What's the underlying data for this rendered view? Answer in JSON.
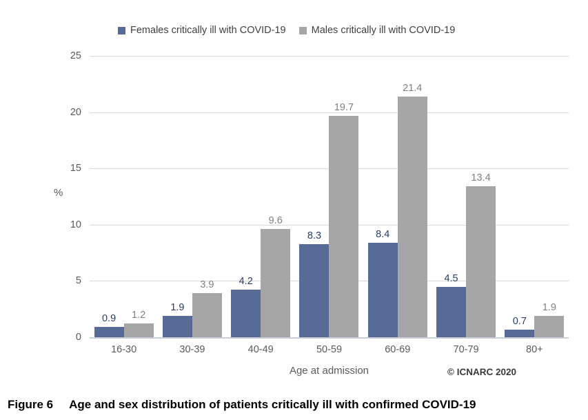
{
  "chart_data": {
    "type": "bar",
    "categories": [
      "16-30",
      "30-39",
      "40-49",
      "50-59",
      "60-69",
      "70-79",
      "80+"
    ],
    "series": [
      {
        "name": "Females critically ill with COVID-19",
        "color": "#586a96",
        "label_color": "#283d66",
        "values": [
          0.9,
          1.9,
          4.2,
          8.3,
          8.4,
          4.5,
          0.7
        ]
      },
      {
        "name": "Males critically ill with COVID-19",
        "color": "#a6a6a6",
        "label_color": "#7f7f7f",
        "values": [
          1.2,
          3.9,
          9.6,
          19.7,
          21.4,
          13.4,
          1.9
        ]
      }
    ],
    "title": "",
    "xlabel": "Age at admission",
    "ylabel": "%",
    "ylim": [
      0,
      25
    ],
    "yticks": [
      0,
      5,
      10,
      15,
      20,
      25
    ],
    "grid": true,
    "legend_position": "top",
    "axis_tick_color": "#595959",
    "gridline_color": "#d9d9d9"
  },
  "annotations": {
    "copyright": "© ICNARC 2020"
  },
  "caption": {
    "label": "Figure 6",
    "text": "Age and sex distribution of patients critically ill with confirmed COVID-19"
  }
}
